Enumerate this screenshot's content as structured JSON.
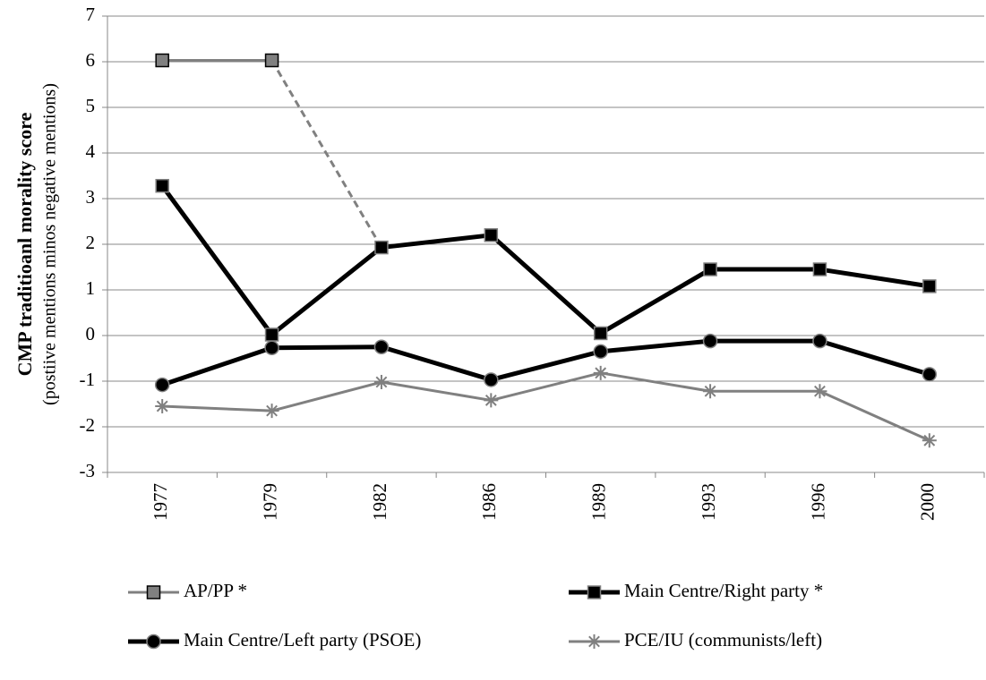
{
  "chart_data": {
    "type": "line",
    "y_title": "CMP traditioanl  morality  score",
    "y_subtitle": "(postiive mentions minos negative mentions)",
    "categories": [
      "1977",
      "1979",
      "1982",
      "1986",
      "1989",
      "1993",
      "1996",
      "2000"
    ],
    "ylim": [
      -3,
      7
    ],
    "yticks": [
      -3,
      -2,
      -1,
      0,
      1,
      2,
      3,
      4,
      5,
      6,
      7
    ],
    "grid": true,
    "series": [
      {
        "name": "AP/PP *",
        "color": "#808080",
        "marker": "square",
        "marker_color": "#808080",
        "marker_stroke": "#000000",
        "width": 3,
        "values": [
          6.03,
          6.03,
          null,
          null,
          null,
          null,
          null,
          null
        ]
      },
      {
        "name": "Main Centre/Right party *",
        "color": "#000000",
        "marker": "square",
        "marker_color": "#000000",
        "marker_stroke": "#808080",
        "width": 5,
        "values": [
          3.28,
          0.02,
          1.93,
          2.2,
          0.05,
          1.45,
          1.45,
          1.08
        ]
      },
      {
        "name": "Main Centre/Left party (PSOE)",
        "color": "#000000",
        "marker": "circle",
        "marker_color": "#000000",
        "marker_stroke": "#808080",
        "width": 5,
        "values": [
          -1.08,
          -0.27,
          -0.25,
          -0.97,
          -0.35,
          -0.12,
          -0.12,
          -0.85
        ]
      },
      {
        "name": "PCE/IU (communists/left)",
        "color": "#808080",
        "marker": "asterisk",
        "marker_color": "#808080",
        "marker_stroke": "#808080",
        "width": 3,
        "values": [
          -1.55,
          -1.65,
          -1.02,
          -1.42,
          -0.82,
          -1.22,
          -1.22,
          -2.3
        ]
      }
    ]
  }
}
